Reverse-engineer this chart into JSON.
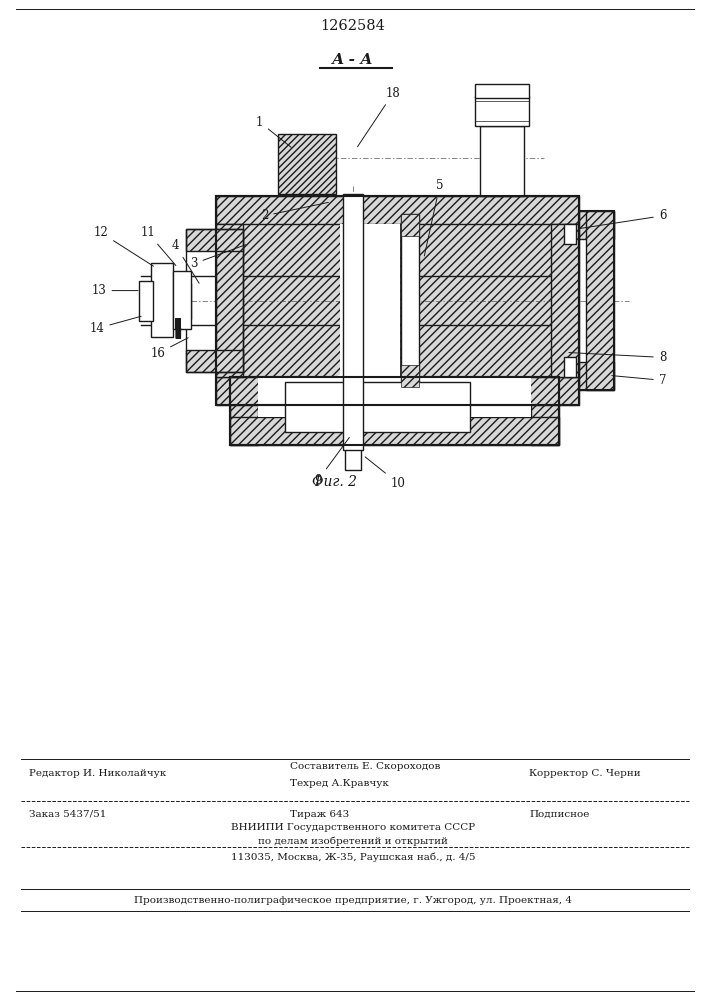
{
  "patent_number": "1262584",
  "section_label": "А - А",
  "fig_label": "Фиг. 2",
  "bg_color": "#ffffff",
  "line_color": "#1a1a1a",
  "footer": {
    "editor_line": "Редактор И. Николайчук",
    "compiler_line1": "Составитель Е. Скороходов",
    "compiler_line2": "Техред А.Кравчук",
    "corrector_line": "Корректор С. Черни",
    "order_line": "Заказ 5437/51",
    "copies_line": "Тираж 643",
    "subscr_line": "Подписное",
    "org_line1": "ВНИИПИ Государственного комитета СССР",
    "org_line2": "по делам изобретений и открытий",
    "org_line3": "113035, Москва, Ж-35, Раушская наб., д. 4/5",
    "prod_line": "Производственно-полиграфическое предприятие, г. Ужгород, ул. Проектная, 4"
  }
}
